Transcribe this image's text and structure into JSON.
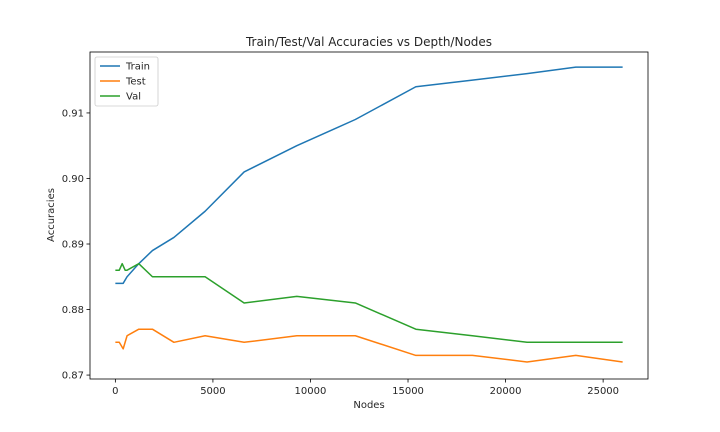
{
  "chart_data": {
    "type": "line",
    "title": "Train/Test/Val Accuracies vs Depth/Nodes",
    "xlabel": "Nodes",
    "ylabel": "Accuracies",
    "xlim": [
      -1300,
      27300
    ],
    "ylim": [
      0.8694,
      0.9193
    ],
    "xticks": [
      0,
      5000,
      10000,
      15000,
      20000,
      25000
    ],
    "yticks": [
      0.87,
      0.88,
      0.89,
      0.9,
      0.91
    ],
    "ytick_labels": [
      "0.87",
      "0.88",
      "0.89",
      "0.90",
      "0.91"
    ],
    "legend_position": "top-left",
    "grid": false,
    "series": [
      {
        "name": "Train",
        "color": "#1f77b4",
        "x": [
          0,
          400,
          600,
          1200,
          1900,
          3000,
          4600,
          6600,
          9300,
          12300,
          15400,
          18300,
          21100,
          23600,
          26000
        ],
        "y": [
          0.884,
          0.884,
          0.885,
          0.887,
          0.889,
          0.891,
          0.895,
          0.901,
          0.905,
          0.909,
          0.914,
          0.915,
          0.916,
          0.917,
          0.917
        ]
      },
      {
        "name": "Test",
        "color": "#ff7f0e",
        "x": [
          0,
          200,
          400,
          600,
          1200,
          1900,
          3000,
          4600,
          6600,
          9300,
          12300,
          15400,
          18300,
          21100,
          23600,
          26000
        ],
        "y": [
          0.875,
          0.875,
          0.874,
          0.876,
          0.877,
          0.877,
          0.875,
          0.876,
          0.875,
          0.876,
          0.876,
          0.873,
          0.873,
          0.872,
          0.873,
          0.872
        ]
      },
      {
        "name": "Val",
        "color": "#2ca02c",
        "x": [
          0,
          200,
          350,
          500,
          600,
          1200,
          1900,
          3000,
          4600,
          6600,
          9300,
          12300,
          15400,
          18300,
          21100,
          23600,
          26000
        ],
        "y": [
          0.886,
          0.886,
          0.887,
          0.886,
          0.886,
          0.887,
          0.885,
          0.885,
          0.885,
          0.881,
          0.882,
          0.881,
          0.877,
          0.876,
          0.875,
          0.875,
          0.875
        ]
      }
    ]
  }
}
